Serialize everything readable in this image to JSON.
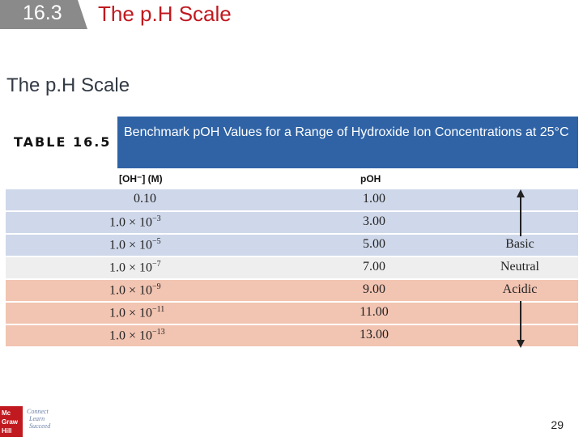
{
  "header": {
    "section_number": "16.3",
    "title": "The p.H Scale"
  },
  "slide": {
    "subtitle": "The p.H Scale",
    "page_number": "29"
  },
  "table": {
    "label": "TABLE 16.5",
    "caption": "Benchmark pOH Values for a Range of Hydroxide Ion Concentrations at 25°C",
    "column_headers": {
      "oh": "[OH⁻] (M)",
      "poh": "pOH"
    },
    "rows": [
      {
        "oh": "0.10",
        "exp": "",
        "poh": "1.00",
        "class": ""
      },
      {
        "oh": "1.0 × 10",
        "exp": "−3",
        "poh": "3.00",
        "class": ""
      },
      {
        "oh": "1.0 × 10",
        "exp": "−5",
        "poh": "5.00",
        "class": "Basic"
      },
      {
        "oh": "1.0 × 10",
        "exp": "−7",
        "poh": "7.00",
        "class": "Neutral"
      },
      {
        "oh": "1.0 × 10",
        "exp": "−9",
        "poh": "9.00",
        "class": "Acidic"
      },
      {
        "oh": "1.0 × 10",
        "exp": "−11",
        "poh": "11.00",
        "class": ""
      },
      {
        "oh": "1.0 × 10",
        "exp": "−13",
        "poh": "13.00",
        "class": ""
      }
    ],
    "colors": {
      "basic_row": "#cfd8ea",
      "neutral_row": "#eeeeee",
      "acidic_row": "#f2c4b2",
      "caption_bg": "#2f63a6"
    }
  },
  "logo": {
    "brand": "Mc Graw Hill",
    "tagline_1": "Connect",
    "tagline_2": "Learn",
    "tagline_3": "Succeed"
  }
}
